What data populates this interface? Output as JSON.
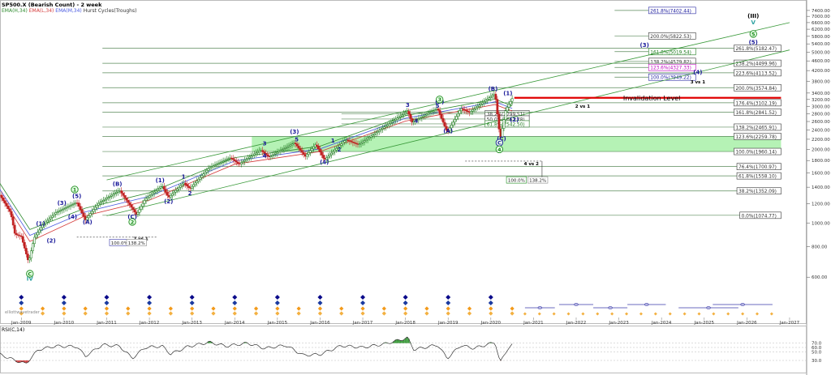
{
  "header": {
    "title": "SP500.X (Bearish Count) - 2 week",
    "ema1": "EMA(H,34)",
    "ema2": "EMA(L,34)",
    "ema3": "EMA(M,34)",
    "hurst": "Hurst Cycles(Troughs)"
  },
  "rsi": {
    "label": "RSI(C,14)",
    "levels": [
      "70.0",
      "60.0",
      "50.0",
      "30.0"
    ]
  },
  "watermark": "elliottwavetrader",
  "invalidation_label": "Invalidation Level",
  "colors": {
    "ema_high": "#2e8b2e",
    "ema_low": "#d43a3a",
    "ema_mid": "#4a5ae0",
    "up_bar": "#1a7a1a",
    "down_bar": "#c02020",
    "wave_blue": "#1a1a9a",
    "wave_green": "#1a8a1a",
    "invalidation": "#e00000",
    "zone": "#a8f0a8"
  },
  "chart_data": {
    "type": "candlestick",
    "title": "SP500.X (Bearish Count) - 2 week",
    "y_scale": "log",
    "y_ticks": [
      600,
      800,
      1000,
      1200,
      1400,
      1600,
      1800,
      2000,
      2200,
      2400,
      2600,
      2800,
      3000,
      3200,
      3400,
      3800,
      4200,
      4600,
      5000,
      5400,
      5800,
      6200,
      6600,
      7000,
      7400
    ],
    "x_ticks": [
      "Jan-2009",
      "Jan-2010",
      "Jan-2011",
      "Jan-2012",
      "Jan-2013",
      "Jan-2014",
      "Jan-2015",
      "Jan-2016",
      "Jan-2017",
      "Jan-2018",
      "Jan-2019",
      "Jan-2020",
      "Jan-2021",
      "Jan-2022",
      "Jan-2023",
      "Jan-2024",
      "Jan-2025",
      "Jan-2026",
      "Jan-2027"
    ],
    "price_path": [
      [
        2008.5,
        1300
      ],
      [
        2008.75,
        1100
      ],
      [
        2008.85,
        900
      ],
      [
        2009.0,
        880
      ],
      [
        2009.17,
        690
      ],
      [
        2009.3,
        870
      ],
      [
        2009.5,
        980
      ],
      [
        2009.8,
        1100
      ],
      [
        2010.3,
        1215
      ],
      [
        2010.5,
        1030
      ],
      [
        2010.8,
        1200
      ],
      [
        2011.3,
        1360
      ],
      [
        2011.7,
        1080
      ],
      [
        2011.9,
        1250
      ],
      [
        2012.3,
        1420
      ],
      [
        2012.45,
        1270
      ],
      [
        2012.8,
        1460
      ],
      [
        2012.95,
        1380
      ],
      [
        2013.4,
        1680
      ],
      [
        2013.9,
        1850
      ],
      [
        2014.1,
        1740
      ],
      [
        2014.6,
        1990
      ],
      [
        2014.8,
        1860
      ],
      [
        2015.4,
        2130
      ],
      [
        2015.65,
        1870
      ],
      [
        2015.9,
        2100
      ],
      [
        2016.1,
        1810
      ],
      [
        2016.6,
        2190
      ],
      [
        2016.9,
        2090
      ],
      [
        2017.5,
        2470
      ],
      [
        2018.05,
        2870
      ],
      [
        2018.15,
        2580
      ],
      [
        2018.75,
        2940
      ],
      [
        2018.98,
        2350
      ],
      [
        2019.3,
        2940
      ],
      [
        2019.5,
        2830
      ],
      [
        2020.1,
        3390
      ],
      [
        2020.22,
        2190
      ],
      [
        2020.35,
        2900
      ],
      [
        2020.5,
        3230
      ]
    ],
    "ema_high": [
      [
        2008.5,
        1450
      ],
      [
        2009.2,
        940
      ],
      [
        2010.5,
        1150
      ],
      [
        2012,
        1330
      ],
      [
        2014,
        1850
      ],
      [
        2016,
        2060
      ],
      [
        2018,
        2750
      ],
      [
        2020.1,
        3210
      ],
      [
        2020.5,
        3010
      ]
    ],
    "ema_low": [
      [
        2008.5,
        1300
      ],
      [
        2009.2,
        840
      ],
      [
        2010.5,
        1070
      ],
      [
        2012,
        1240
      ],
      [
        2014,
        1740
      ],
      [
        2016,
        1960
      ],
      [
        2018,
        2610
      ],
      [
        2020.1,
        3050
      ],
      [
        2020.5,
        2870
      ]
    ],
    "ema_mid": [
      [
        2008.5,
        1370
      ],
      [
        2009.2,
        890
      ],
      [
        2010.5,
        1110
      ],
      [
        2012,
        1285
      ],
      [
        2014,
        1795
      ],
      [
        2016,
        2010
      ],
      [
        2018,
        2680
      ],
      [
        2020.1,
        3130
      ],
      [
        2020.5,
        2940
      ]
    ],
    "fib_levels": [
      {
        "label": "261.8%(7402.44)",
        "value": 7402.44,
        "x_start": 2022.9,
        "x_end": 2024.8
      },
      {
        "label": "200.0%(5822.53)",
        "value": 5822.53,
        "x_start": 2022.9,
        "x_end": 2024.8
      },
      {
        "label": "261.8%(5182.47)",
        "value": 5182.47,
        "x_start": 2010.9,
        "x_end": 2026.8
      },
      {
        "label": "161.8%(5019.54)",
        "value": 5019.54,
        "x_start": 2022.9,
        "x_end": 2024.8
      },
      {
        "label": "138.2%(4579.82)",
        "value": 4579.82,
        "x_start": 2022.9,
        "x_end": 2024.8
      },
      {
        "label": "238.2%(4499.96)",
        "value": 4499.96,
        "x_start": 2010.9,
        "x_end": 2026.8
      },
      {
        "label": "123.6%(4327.33)",
        "value": 4327.33,
        "x_start": 2022.9,
        "x_end": 2024.8
      },
      {
        "label": "223.6%(4113.52)",
        "value": 4113.52,
        "x_start": 2010.9,
        "x_end": 2026.8
      },
      {
        "label": "100.0%(3949.22)",
        "value": 3949.22,
        "x_start": 2022.9,
        "x_end": 2024.8
      },
      {
        "label": "200.0%(3574.84)",
        "value": 3574.84,
        "x_start": 2010.9,
        "x_end": 2026.8
      },
      {
        "label": "176.4%(3102.19)",
        "value": 3102.19,
        "x_start": 2010.9,
        "x_end": 2026.8
      },
      {
        "label": "38.2%(2799.51)",
        "value": 2799.51,
        "x_start": 2016.5,
        "x_end": 2020.9
      },
      {
        "label": "161.8%(2841.52)",
        "value": 2841.52,
        "x_start": 2010.9,
        "x_end": 2026.8
      },
      {
        "label": "50.0%(2661.78)",
        "value": 2661.78,
        "x_start": 2016.5,
        "x_end": 2020.9
      },
      {
        "label": "61.8%(2542.50)",
        "value": 2542.5,
        "x_start": 2016.5,
        "x_end": 2020.9
      },
      {
        "label": "138.2%(2465.91)",
        "value": 2465.91,
        "x_start": 2010.9,
        "x_end": 2026.8
      },
      {
        "label": "123.6%(2259.78)",
        "value": 2259.78,
        "x_start": 2010.9,
        "x_end": 2026.8
      },
      {
        "label": "100.0%(1960.14)",
        "value": 1960.14,
        "x_start": 2010.9,
        "x_end": 2026.8
      },
      {
        "label": "76.4%(1700.97)",
        "value": 1700.97,
        "x_start": 2010.9,
        "x_end": 2026.8
      },
      {
        "label": "61.8%(1558.10)",
        "value": 1558.1,
        "x_start": 2010.9,
        "x_end": 2026.8
      },
      {
        "label": "38.2%(1352.09)",
        "value": 1352.09,
        "x_start": 2010.9,
        "x_end": 2026.8
      },
      {
        "label": "0.0%(1074.77)",
        "value": 1074.77,
        "x_start": 2010.9,
        "x_end": 2026.8
      }
    ],
    "invalidation_level": 3250,
    "support_zone": [
      1960.14,
      2259.78
    ],
    "zone_x": [
      2014.4,
      2026.8
    ],
    "channel_upper": [
      [
        2011.0,
        1500
      ],
      [
        2027.0,
        6600
      ]
    ],
    "channel_lower": [
      [
        2011.0,
        1070
      ],
      [
        2027.0,
        5100
      ]
    ],
    "wave_labels": [
      {
        "text": "(1)",
        "x": 2009.45,
        "y": 975,
        "color": "blue"
      },
      {
        "text": "(2)",
        "x": 2009.7,
        "y": 830,
        "color": "blue"
      },
      {
        "text": "(3)",
        "x": 2009.95,
        "y": 1185,
        "color": "blue"
      },
      {
        "text": "(4)",
        "x": 2010.2,
        "y": 1040,
        "color": "blue"
      },
      {
        "text": "(5)",
        "x": 2010.3,
        "y": 1265,
        "color": "blue"
      },
      {
        "text": "(A)",
        "x": 2010.55,
        "y": 990,
        "color": "blue"
      },
      {
        "text": "(B)",
        "x": 2011.25,
        "y": 1420,
        "color": "blue"
      },
      {
        "text": "(C)",
        "x": 2011.6,
        "y": 1040,
        "color": "blue"
      },
      {
        "text": "(1)",
        "x": 2012.25,
        "y": 1470,
        "color": "blue"
      },
      {
        "text": "(2)",
        "x": 2012.45,
        "y": 1205,
        "color": "blue"
      },
      {
        "text": "1",
        "x": 2012.8,
        "y": 1520,
        "color": "blue"
      },
      {
        "text": "2",
        "x": 2012.95,
        "y": 1300,
        "color": "blue"
      },
      {
        "text": "3",
        "x": 2014.7,
        "y": 2080,
        "color": "blue"
      },
      {
        "text": "4",
        "x": 2014.7,
        "y": 1850,
        "color": "blue"
      },
      {
        "text": "(3)",
        "x": 2015.4,
        "y": 2320,
        "color": "blue"
      },
      {
        "text": "5",
        "x": 2015.45,
        "y": 2160,
        "color": "blue"
      },
      {
        "text": "(4)",
        "x": 2016.1,
        "y": 1740,
        "color": "blue"
      },
      {
        "text": "1",
        "x": 2016.3,
        "y": 2130,
        "color": "blue"
      },
      {
        "text": "2",
        "x": 2016.45,
        "y": 1960,
        "color": "blue"
      },
      {
        "text": "3",
        "x": 2018.05,
        "y": 2980,
        "color": "blue"
      },
      {
        "text": "4",
        "x": 2018.25,
        "y": 2570,
        "color": "blue"
      },
      {
        "text": "(5)",
        "x": 2018.8,
        "y": 3080,
        "color": "blue"
      },
      {
        "text": "5",
        "x": 2018.75,
        "y": 2960,
        "color": "blue"
      },
      {
        "text": "(A)",
        "x": 2019.0,
        "y": 2340,
        "color": "blue"
      },
      {
        "text": "(B)",
        "x": 2020.05,
        "y": 3480,
        "color": "blue"
      },
      {
        "text": "(1)",
        "x": 2020.4,
        "y": 3330,
        "color": "blue"
      },
      {
        "text": "(2)",
        "x": 2020.55,
        "y": 2600,
        "color": "blue"
      },
      {
        "text": "(C)",
        "x": 2020.25,
        "y": 2170,
        "color": "blue"
      },
      {
        "text": "(3)",
        "x": 2023.6,
        "y": 5250,
        "color": "blue"
      },
      {
        "text": "(4)",
        "x": 2024.85,
        "y": 4060,
        "color": "blue"
      },
      {
        "text": "(5)",
        "x": 2026.15,
        "y": 5380,
        "color": "blue"
      },
      {
        "text": "(III)",
        "x": 2026.15,
        "y": 6900,
        "color": "black"
      },
      {
        "text": "V",
        "x": 2026.15,
        "y": 6500,
        "color": "teal"
      },
      {
        "text": "IV",
        "x": 2009.2,
        "y": 580,
        "color": "teal"
      },
      {
        "text": "3 vs 1",
        "x": 2024.85,
        "y": 3720,
        "color": "black"
      },
      {
        "text": "2 vs 1",
        "x": 2022.15,
        "y": 2960,
        "color": "black"
      },
      {
        "text": "4 vs 2",
        "x": 2020.95,
        "y": 1720,
        "color": "black"
      },
      {
        "text": "2 vs 1",
        "x": 2011.8,
        "y": 850,
        "color": "black"
      }
    ],
    "wave_circles": [
      {
        "text": "C",
        "x": 2009.2,
        "y": 620,
        "color": "green"
      },
      {
        "text": "1",
        "x": 2010.25,
        "y": 1370,
        "color": "green"
      },
      {
        "text": "2",
        "x": 2011.6,
        "y": 1010,
        "color": "green"
      },
      {
        "text": "3",
        "x": 2018.8,
        "y": 3200,
        "color": "green"
      },
      {
        "text": "C",
        "x": 2020.2,
        "y": 2130,
        "color": "blue"
      },
      {
        "text": "4",
        "x": 2020.2,
        "y": 2000,
        "color": "green"
      },
      {
        "text": "5",
        "x": 2026.15,
        "y": 5930,
        "color": "green"
      }
    ],
    "boxes": [
      {
        "text": "100.0%",
        "x": 2020.6,
        "y": 1500,
        "border": "green"
      },
      {
        "text": "138.2%",
        "x": 2021.1,
        "y": 1500,
        "border": "gray"
      },
      {
        "text": "100.0%",
        "x": 2011.3,
        "y": 832,
        "border": "blue"
      },
      {
        "text": "138.2%",
        "x": 2011.7,
        "y": 832,
        "border": "gray"
      }
    ],
    "hurst_markers_x": [
      2009.0,
      2009.5,
      2010.0,
      2010.5,
      2011.0,
      2011.5,
      2012.0,
      2012.5,
      2013.0,
      2013.5,
      2014.0,
      2014.5,
      2015.0,
      2015.5,
      2016.0,
      2016.5,
      2017.0,
      2017.5,
      2018.0,
      2018.5,
      2019.0,
      2019.5,
      2020.0,
      2020.5
    ],
    "rsi_path": [
      [
        2008.5,
        44
      ],
      [
        2008.8,
        32
      ],
      [
        2009.1,
        22
      ],
      [
        2009.4,
        55
      ],
      [
        2009.8,
        63
      ],
      [
        2010.3,
        62
      ],
      [
        2010.5,
        40
      ],
      [
        2010.9,
        66
      ],
      [
        2011.3,
        63
      ],
      [
        2011.6,
        35
      ],
      [
        2011.9,
        60
      ],
      [
        2012.3,
        63
      ],
      [
        2012.5,
        45
      ],
      [
        2012.9,
        62
      ],
      [
        2013.4,
        72
      ],
      [
        2013.8,
        63
      ],
      [
        2014.3,
        70
      ],
      [
        2014.7,
        58
      ],
      [
        2015.2,
        65
      ],
      [
        2015.6,
        42
      ],
      [
        2016.0,
        44
      ],
      [
        2016.5,
        64
      ],
      [
        2017.0,
        60
      ],
      [
        2017.5,
        68
      ],
      [
        2018.05,
        82
      ],
      [
        2018.2,
        55
      ],
      [
        2018.75,
        66
      ],
      [
        2018.98,
        35
      ],
      [
        2019.3,
        65
      ],
      [
        2019.6,
        58
      ],
      [
        2020.1,
        72
      ],
      [
        2020.22,
        25
      ],
      [
        2020.4,
        58
      ],
      [
        2020.5,
        66
      ]
    ]
  }
}
